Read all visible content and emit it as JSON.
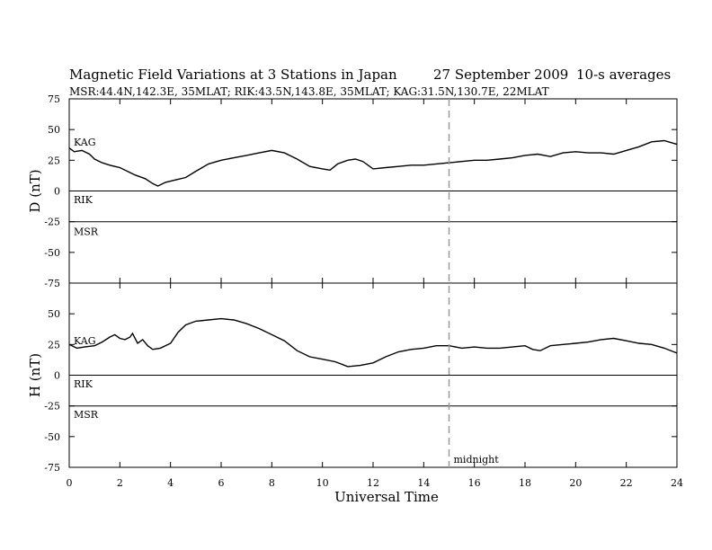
{
  "header": {
    "title": "Magnetic Field Variations at 3 Stations in Japan",
    "date": "27 September 2009",
    "averaging": "10-s averages",
    "stations_line": "MSR:44.4N,142.3E, 35MLAT;  RIK:43.5N,143.8E, 35MLAT;  KAG:31.5N,130.7E, 22MLAT"
  },
  "chart_data": {
    "type": "line",
    "xlabel": "Universal Time",
    "xlim": [
      0,
      24
    ],
    "x_ticks": [
      0,
      2,
      4,
      6,
      8,
      10,
      12,
      14,
      16,
      18,
      20,
      22,
      24
    ],
    "grid": false,
    "marker": {
      "x": 15,
      "label": "midnight",
      "style": "dashed",
      "color": "#9a9a9a"
    },
    "panels": [
      {
        "id": "D",
        "ylabel": "D (nT)",
        "ylim": [
          -75,
          75
        ],
        "y_ticks": [
          75,
          50,
          25,
          0,
          -25,
          -50,
          -75
        ],
        "station_labels": [
          {
            "name": "KAG",
            "y": 40
          },
          {
            "name": "RIK",
            "y": -7
          },
          {
            "name": "MSR",
            "y": -33
          }
        ],
        "series": [
          {
            "name": "KAG",
            "x": [
              0,
              0.2,
              0.5,
              0.8,
              1.0,
              1.3,
              1.6,
              2.0,
              2.3,
              2.6,
              3.0,
              3.3,
              3.5,
              3.8,
              4.2,
              4.6,
              5.0,
              5.5,
              6.0,
              6.5,
              7.0,
              7.5,
              8.0,
              8.5,
              9.0,
              9.5,
              10.0,
              10.3,
              10.6,
              11.0,
              11.3,
              11.6,
              12.0,
              12.5,
              13.0,
              13.5,
              14.0,
              14.5,
              15.0,
              15.5,
              16.0,
              16.5,
              17.0,
              17.5,
              18.0,
              18.5,
              19.0,
              19.5,
              20.0,
              20.5,
              21.0,
              21.5,
              22.0,
              22.5,
              23.0,
              23.5,
              24.0
            ],
            "y": [
              35,
              32,
              33,
              30,
              26,
              23,
              21,
              19,
              16,
              13,
              10,
              6,
              4,
              7,
              9,
              11,
              16,
              22,
              25,
              27,
              29,
              31,
              33,
              31,
              26,
              20,
              18,
              17,
              22,
              25,
              26,
              24,
              18,
              19,
              20,
              21,
              21,
              22,
              23,
              24,
              25,
              25,
              26,
              27,
              29,
              30,
              28,
              31,
              32,
              31,
              31,
              30,
              33,
              36,
              40,
              41,
              38
            ]
          },
          {
            "name": "RIK",
            "x": [
              0,
              24
            ],
            "y": [
              0,
              0
            ]
          },
          {
            "name": "MSR",
            "x": [
              0,
              24
            ],
            "y": [
              -25,
              -25
            ]
          }
        ]
      },
      {
        "id": "H",
        "ylabel": "H (nT)",
        "ylim": [
          -75,
          75
        ],
        "y_ticks": [
          75,
          50,
          25,
          0,
          -25,
          -50,
          -75
        ],
        "station_labels": [
          {
            "name": "KAG",
            "y": 28
          },
          {
            "name": "RIK",
            "y": -7
          },
          {
            "name": "MSR",
            "y": -32
          }
        ],
        "series": [
          {
            "name": "KAG",
            "x": [
              0,
              0.3,
              0.6,
              1.0,
              1.3,
              1.6,
              1.8,
              2.0,
              2.2,
              2.4,
              2.5,
              2.7,
              2.9,
              3.1,
              3.3,
              3.6,
              4.0,
              4.3,
              4.6,
              5.0,
              5.5,
              6.0,
              6.5,
              7.0,
              7.5,
              8.0,
              8.5,
              9.0,
              9.5,
              10.0,
              10.5,
              11.0,
              11.5,
              12.0,
              12.5,
              13.0,
              13.5,
              14.0,
              14.5,
              15.0,
              15.5,
              16.0,
              16.5,
              17.0,
              17.5,
              18.0,
              18.3,
              18.6,
              19.0,
              19.5,
              20.0,
              20.5,
              21.0,
              21.5,
              22.0,
              22.5,
              23.0,
              23.5,
              24.0
            ],
            "y": [
              25,
              22,
              23,
              24,
              27,
              31,
              33,
              30,
              29,
              31,
              34,
              26,
              29,
              24,
              21,
              22,
              26,
              35,
              41,
              44,
              45,
              46,
              45,
              42,
              38,
              33,
              28,
              20,
              15,
              13,
              11,
              7,
              8,
              10,
              15,
              19,
              21,
              22,
              24,
              24,
              22,
              23,
              22,
              22,
              23,
              24,
              21,
              20,
              24,
              25,
              26,
              27,
              29,
              30,
              28,
              26,
              25,
              22,
              18
            ]
          },
          {
            "name": "RIK",
            "x": [
              0,
              24
            ],
            "y": [
              0,
              0
            ]
          },
          {
            "name": "MSR",
            "x": [
              0,
              24
            ],
            "y": [
              -25,
              -25
            ]
          }
        ]
      }
    ]
  }
}
